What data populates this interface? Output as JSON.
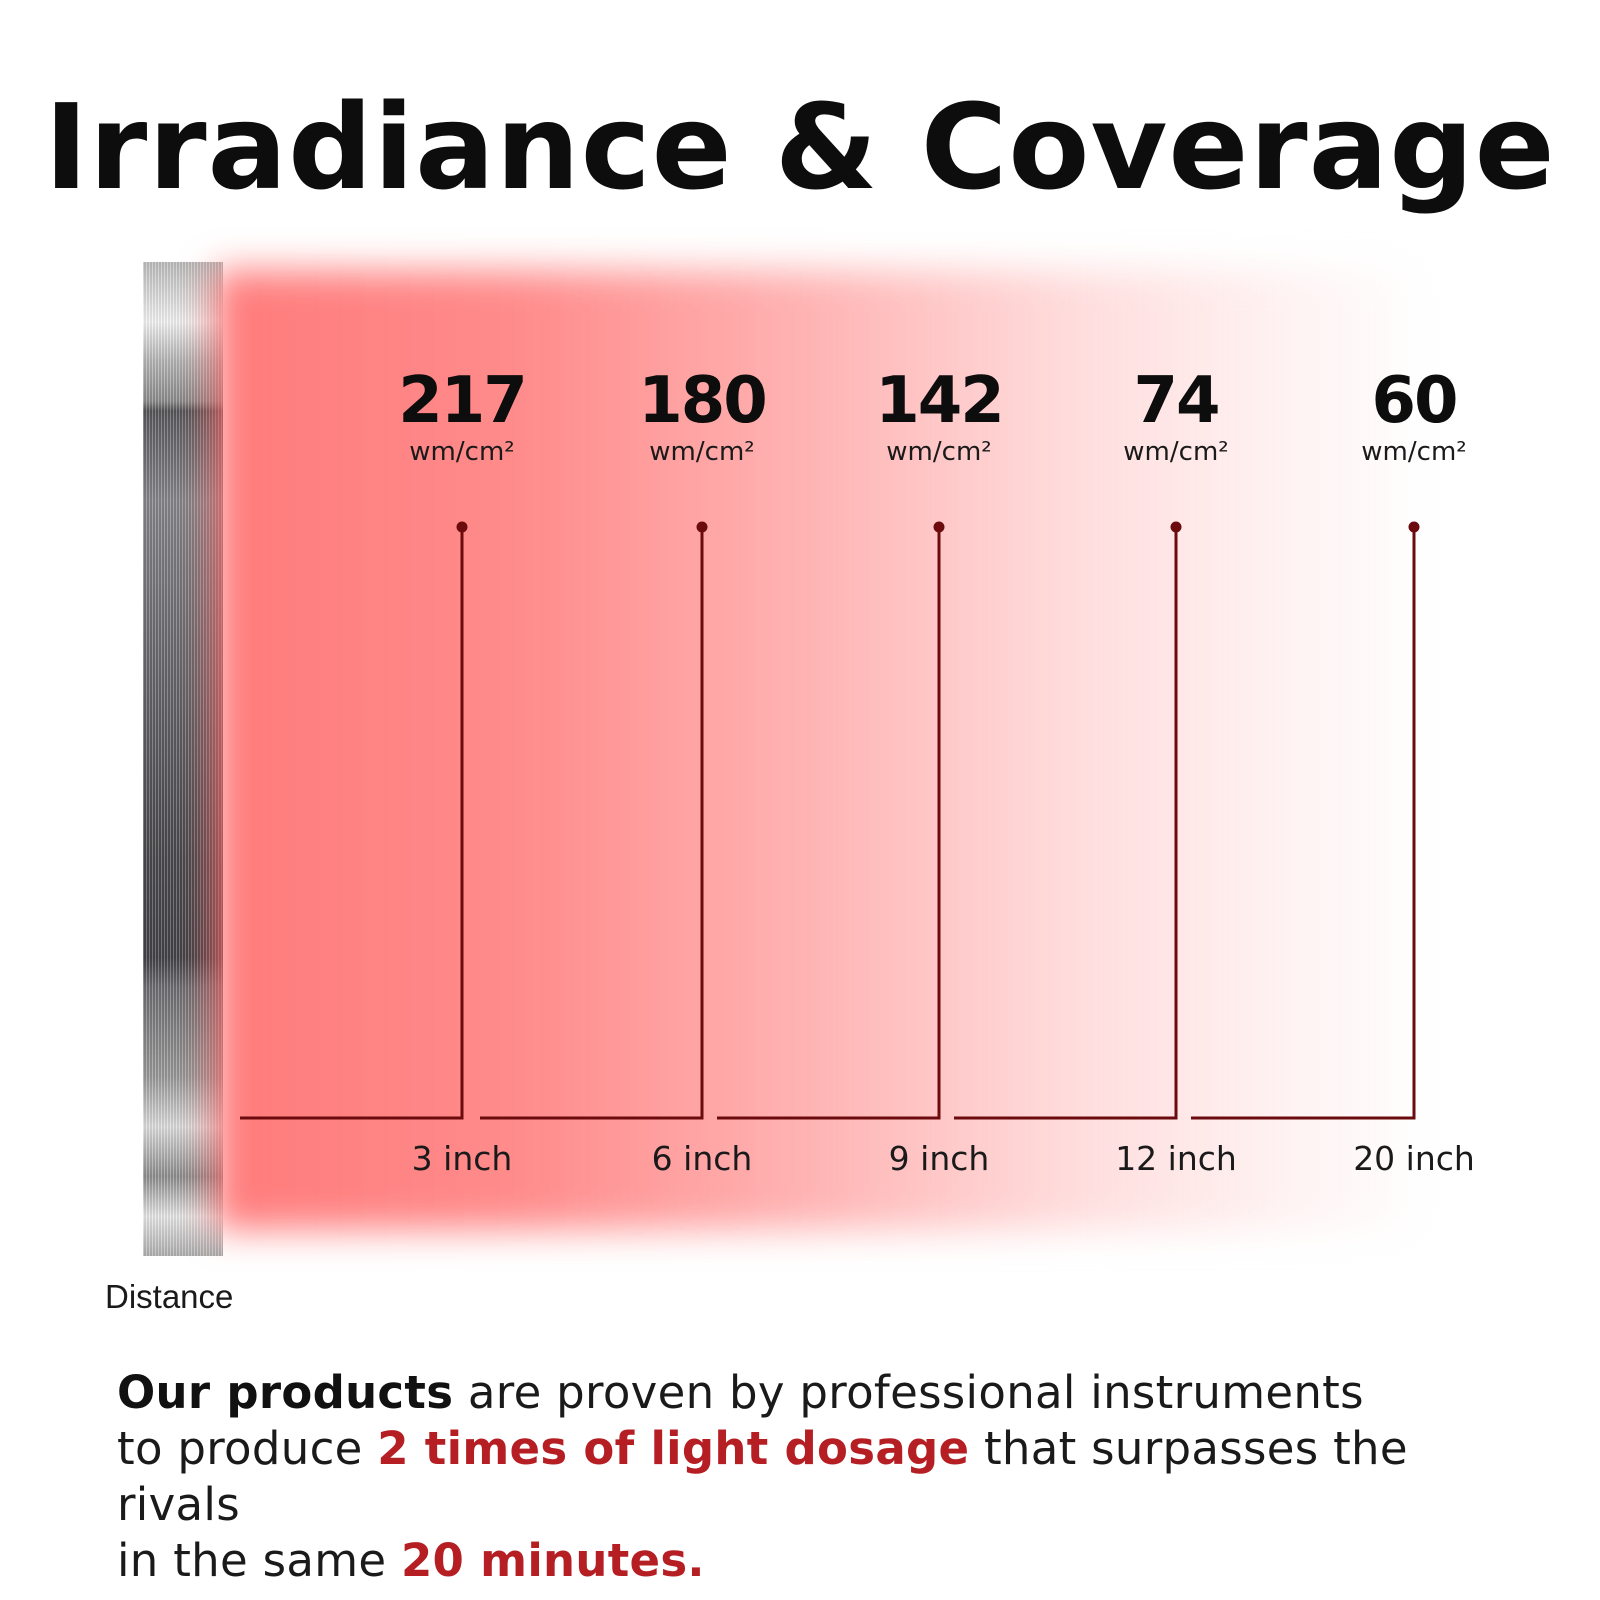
{
  "title": "Irradiance & Coverage",
  "colors": {
    "line": "#6b0b0e",
    "highlight": "#b51f24",
    "text": "#111111"
  },
  "chart_data": {
    "type": "bar",
    "categories": [
      "3 inch",
      "6 inch",
      "9 inch",
      "12 inch",
      "20 inch"
    ],
    "values": [
      217,
      180,
      142,
      74,
      60
    ],
    "unit": "wm/cm²",
    "xlabel": "Distance"
  },
  "description": {
    "line1_bold": "Our products",
    "line1_rest": " are proven by professional instruments",
    "line2_start": "to produce ",
    "line2_red": "2 times of light dosage",
    "line2_rest": " that surpasses the rivals",
    "line3_start": "in the same ",
    "line3_red": "20 minutes."
  }
}
